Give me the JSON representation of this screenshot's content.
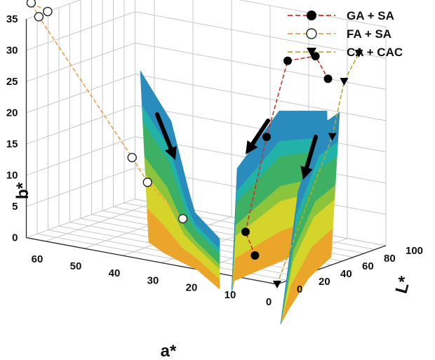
{
  "chart_data": {
    "type": "3d-surface",
    "title": "",
    "axes": {
      "a": {
        "label": "a*",
        "ticks": [
          "60",
          "50",
          "40",
          "30",
          "20",
          "10",
          "0"
        ],
        "range": [
          0,
          65
        ]
      },
      "b": {
        "label": "b*",
        "ticks": [
          "0",
          "5",
          "10",
          "15",
          "20",
          "25",
          "30",
          "35"
        ],
        "range": [
          0,
          35
        ]
      },
      "L": {
        "label": "L*",
        "ticks": [
          "0",
          "20",
          "40",
          "60",
          "80",
          "100"
        ],
        "range": [
          0,
          100
        ]
      }
    },
    "series": [
      {
        "name": "GA + SA",
        "marker": "filled-circle",
        "line_color": "#c0392b",
        "points": [
          {
            "a": 8,
            "L": 8,
            "b": 3.2
          },
          {
            "a": 11,
            "L": 10,
            "b": 6.5
          },
          {
            "a": 14,
            "L": 40,
            "b": 19.5
          },
          {
            "a": 17,
            "L": 70,
            "b": 29.5
          },
          {
            "a": 16,
            "L": 92,
            "b": 29
          },
          {
            "a": 15,
            "L": 100,
            "b": 25
          }
        ]
      },
      {
        "name": "FA + SA",
        "marker": "open-circle",
        "line_color": "#e8a050",
        "points": [
          {
            "a": 25,
            "L": 2,
            "b": 7.5
          },
          {
            "a": 35,
            "L": 5,
            "b": 12
          },
          {
            "a": 39,
            "L": 5,
            "b": 15.5
          },
          {
            "a": 64,
            "L": 8,
            "b": 35
          },
          {
            "a": 66,
            "L": 8,
            "b": 37
          },
          {
            "a": 62,
            "L": 9,
            "b": 36
          }
        ]
      },
      {
        "name": "CA + CAC",
        "marker": "filled-triangle-down",
        "line_color": "#a8b030",
        "points": [
          {
            "a": 0,
            "L": 0,
            "b": 0
          },
          {
            "a": 6,
            "L": 72,
            "b": 18.5
          },
          {
            "a": 8,
            "L": 90,
            "b": 26
          },
          {
            "a": 7,
            "L": 100,
            "b": 30
          }
        ]
      }
    ],
    "colors": {
      "orange": "#eaa52a",
      "yellow": "#d4d42a",
      "light-green": "#8cc43c",
      "green": "#3eb064",
      "teal": "#22b2a8",
      "blue": "#2a8cbc",
      "purple": "#6a5cc0"
    },
    "legend": "top-right",
    "grid": true
  }
}
